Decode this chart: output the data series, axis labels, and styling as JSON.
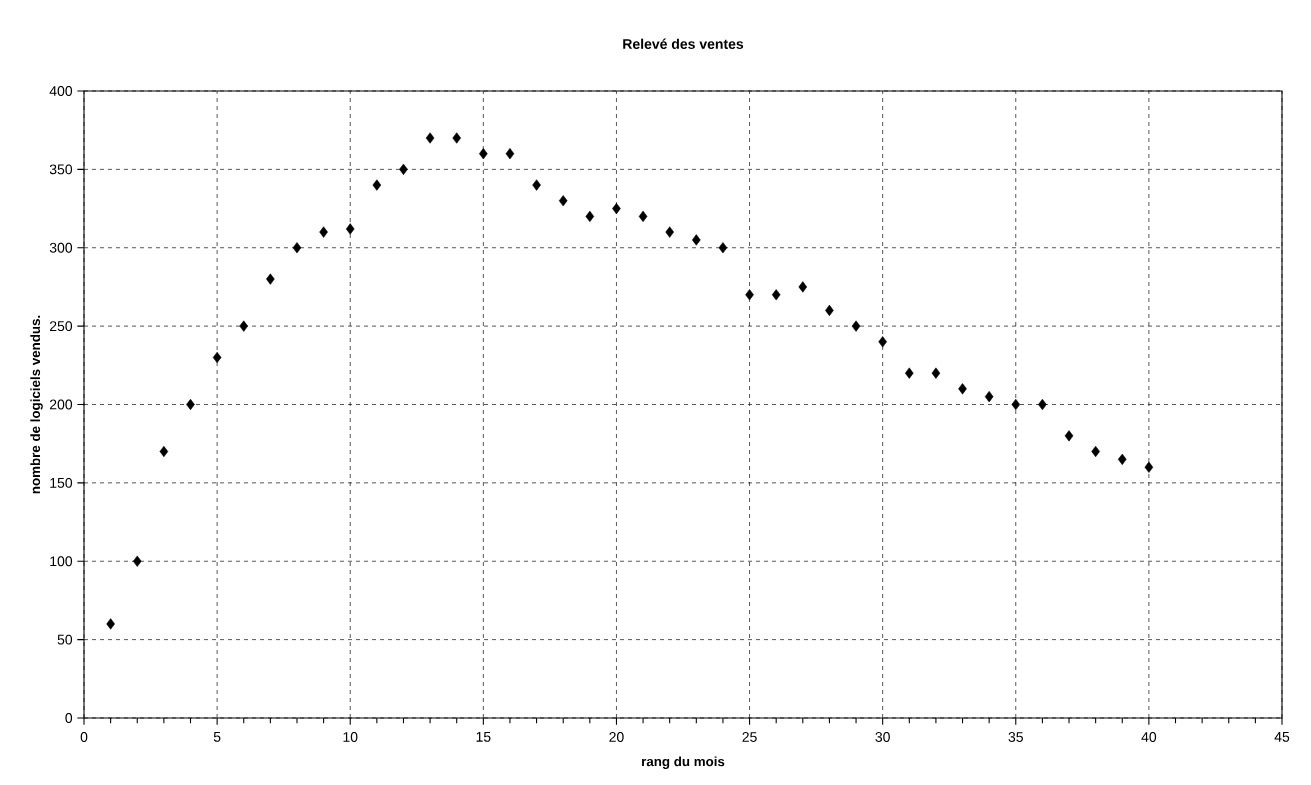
{
  "chart_data": {
    "type": "scatter",
    "title": "Relevé des ventes",
    "xlabel": "rang du mois",
    "ylabel": "nombre de logiciels vendus.",
    "x": [
      1,
      2,
      3,
      4,
      5,
      6,
      7,
      8,
      9,
      10,
      11,
      12,
      13,
      14,
      15,
      16,
      17,
      18,
      19,
      20,
      21,
      22,
      23,
      24,
      25,
      26,
      27,
      28,
      29,
      30,
      31,
      32,
      33,
      34,
      35,
      36,
      37,
      38,
      39,
      40
    ],
    "series": [
      {
        "color": "#000000",
        "values": [
          60,
          100,
          170,
          200,
          230,
          250,
          280,
          300,
          310,
          312,
          340,
          350,
          370,
          370,
          360,
          360,
          340,
          330,
          320,
          325,
          320,
          310,
          305,
          300,
          270,
          270,
          275,
          260,
          250,
          240,
          220,
          220,
          210,
          205,
          200,
          200,
          180,
          170,
          165,
          160
        ]
      }
    ],
    "xlim": [
      0,
      45
    ],
    "xticks": [
      0,
      5,
      10,
      15,
      20,
      25,
      30,
      35,
      40,
      45
    ],
    "ylim": [
      0,
      400
    ],
    "yticks": [
      0,
      50,
      100,
      150,
      200,
      250,
      300,
      350,
      400
    ],
    "grid": true,
    "marker": "diamond",
    "legend": false
  }
}
